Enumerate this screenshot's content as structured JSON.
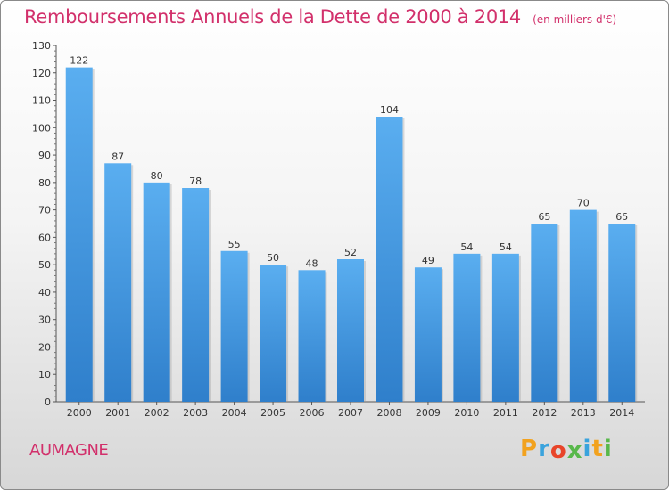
{
  "chart_data": {
    "type": "bar",
    "title": "Remboursements Annuels de la Dette de 2000 à 2014",
    "unit": "(en milliers d'€)",
    "categories": [
      "2000",
      "2001",
      "2002",
      "2003",
      "2004",
      "2005",
      "2006",
      "2007",
      "2008",
      "2009",
      "2010",
      "2011",
      "2012",
      "2013",
      "2014"
    ],
    "values": [
      122,
      87,
      80,
      78,
      55,
      50,
      48,
      52,
      104,
      49,
      54,
      54,
      65,
      70,
      65
    ],
    "ylim": [
      0,
      130
    ],
    "yticks": [
      0,
      10,
      20,
      30,
      40,
      50,
      60,
      70,
      80,
      90,
      100,
      110,
      120,
      130
    ],
    "grid": false,
    "bar_color": "#4a9fe3"
  },
  "footer": {
    "city": "AUMAGNE",
    "logo_letters": [
      "P",
      "r",
      "o",
      "x",
      "i",
      "t",
      "i"
    ],
    "logo_colors": [
      "#f2a21e",
      "#3aa3dd",
      "#e8452a",
      "#58b84a",
      "#3aa3dd",
      "#f2a21e",
      "#58b84a"
    ]
  }
}
